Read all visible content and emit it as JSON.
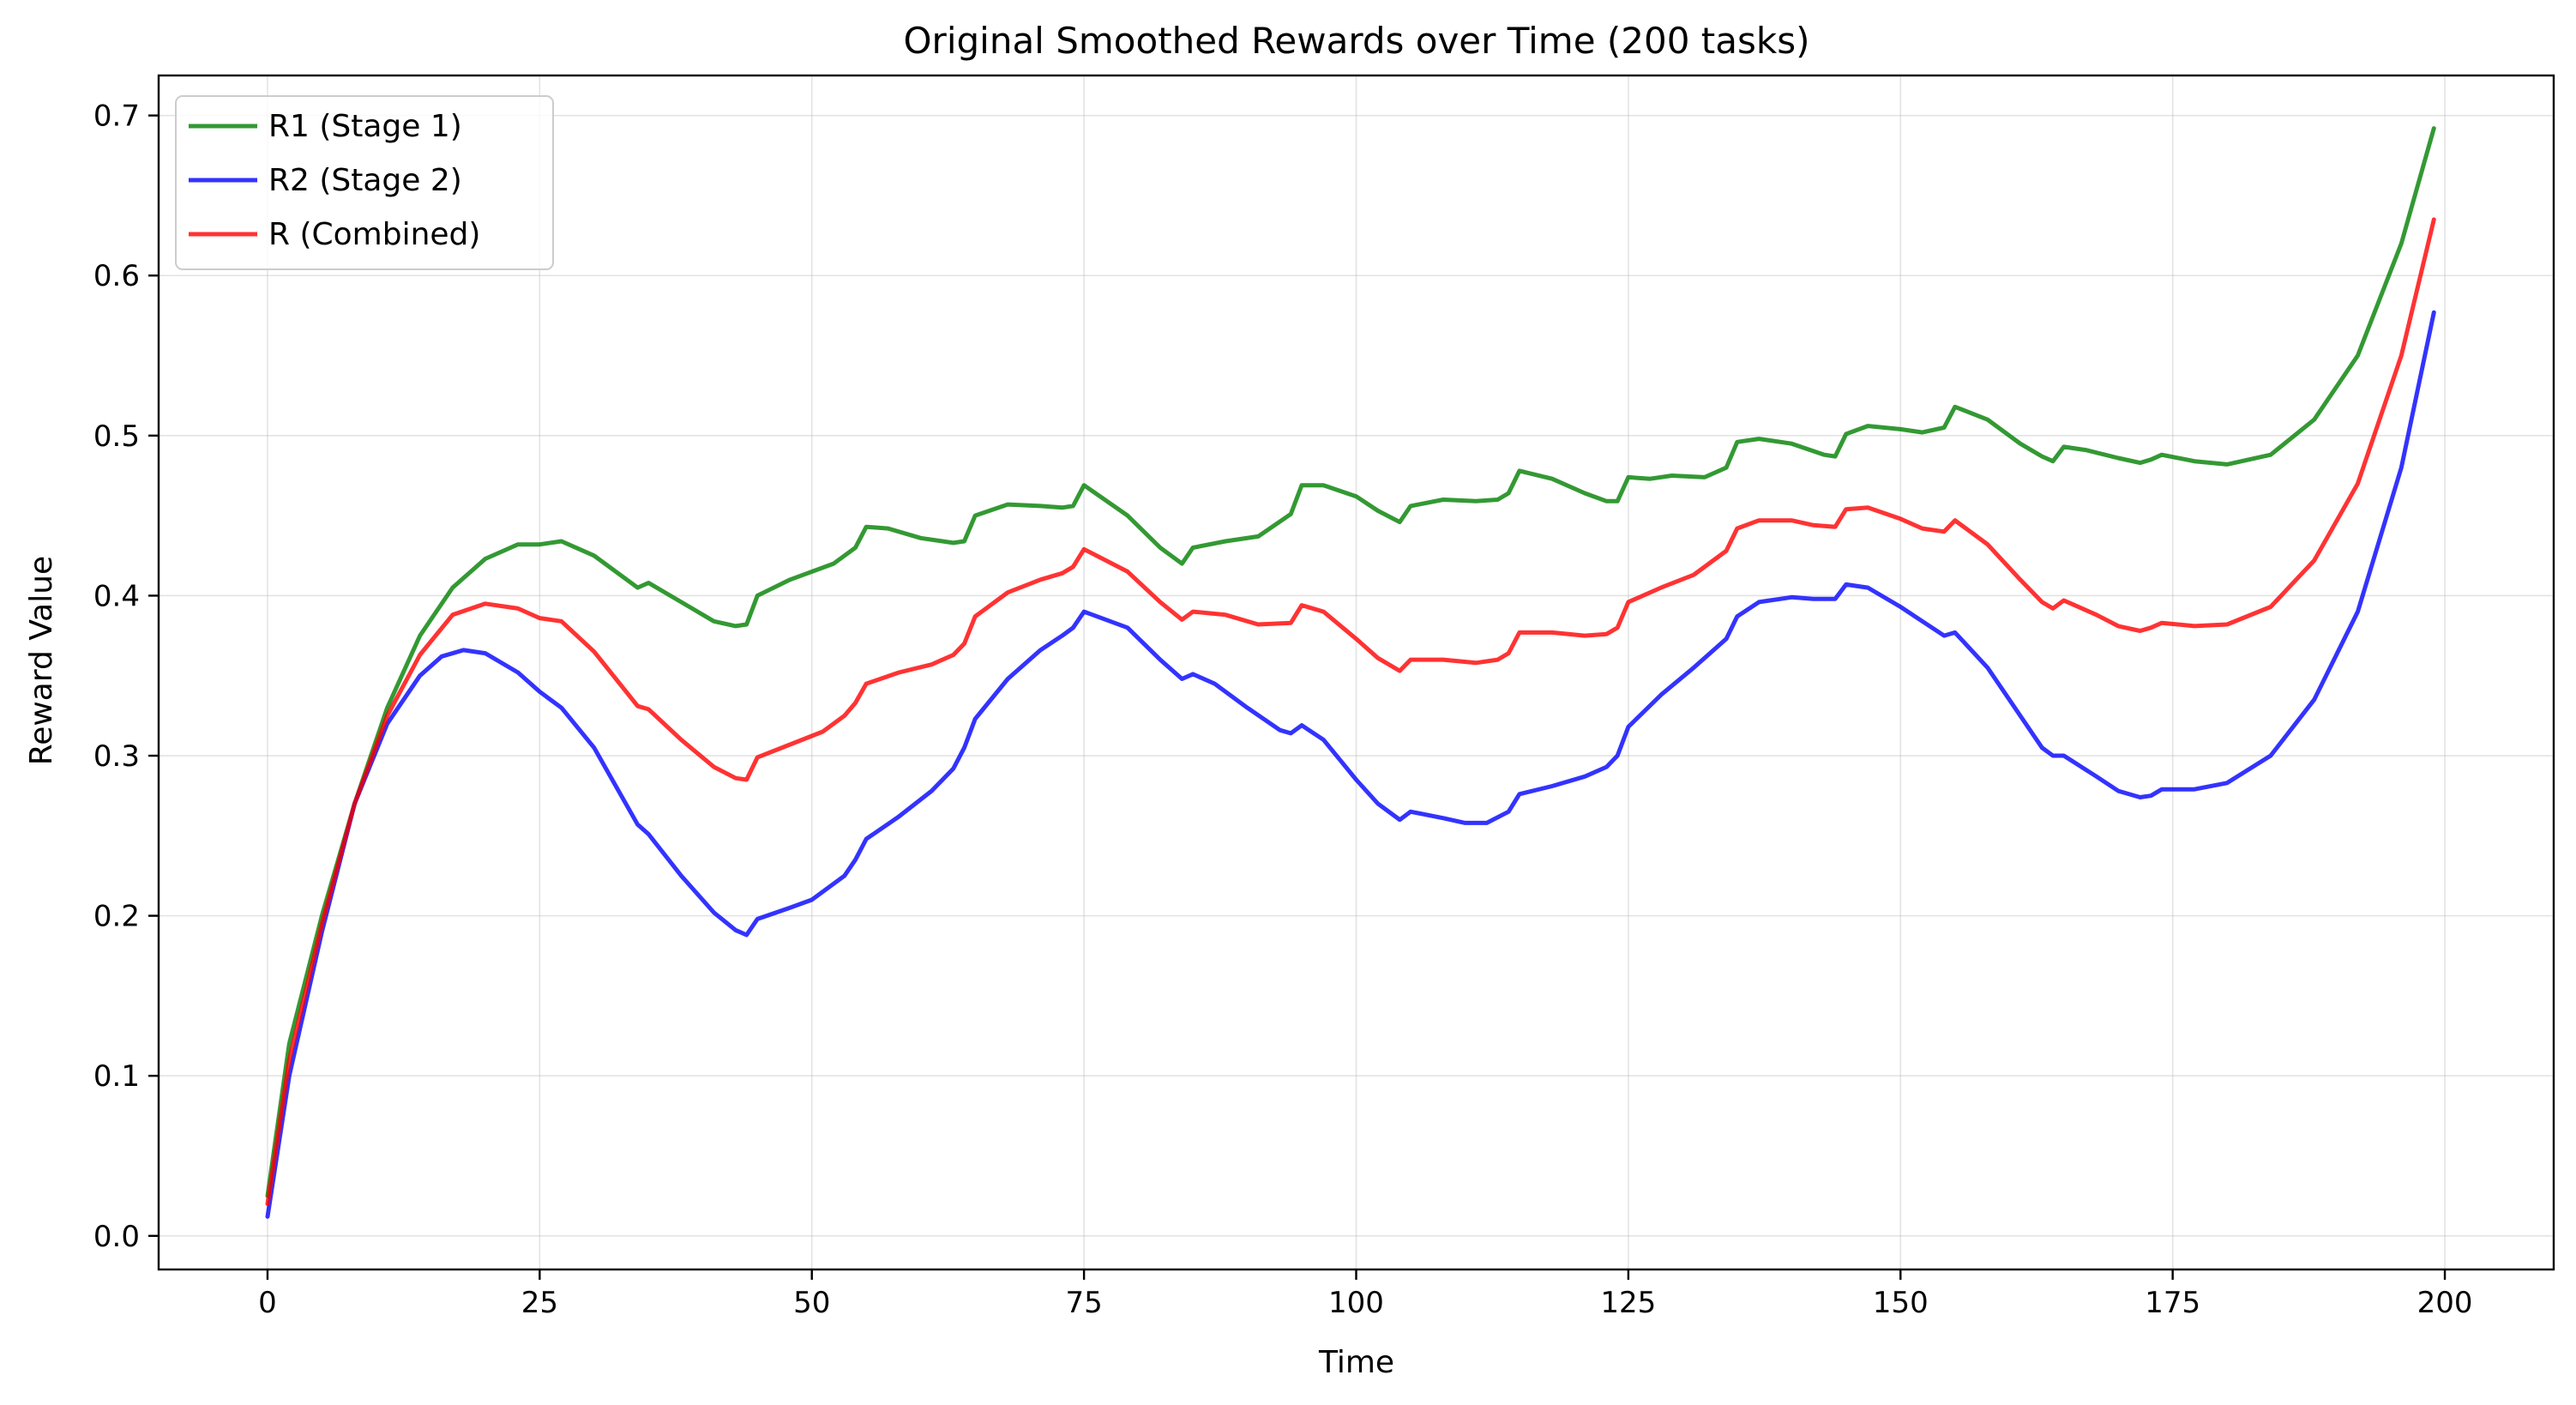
{
  "chart_data": {
    "type": "line",
    "title": "Original Smoothed Rewards over Time (200 tasks)",
    "xlabel": "Time",
    "ylabel": "Reward Value",
    "xlim": [
      -10,
      210
    ],
    "ylim": [
      -0.021,
      0.725
    ],
    "xticks": [
      0,
      25,
      50,
      75,
      100,
      125,
      150,
      175,
      200
    ],
    "yticks": [
      0.0,
      0.1,
      0.2,
      0.3,
      0.4,
      0.5,
      0.6,
      0.7
    ],
    "xtick_labels": [
      "0",
      "25",
      "50",
      "75",
      "100",
      "125",
      "150",
      "175",
      "200"
    ],
    "ytick_labels": [
      "0.0",
      "0.1",
      "0.2",
      "0.3",
      "0.4",
      "0.5",
      "0.6",
      "0.7"
    ],
    "grid": true,
    "legend_position": "top-left",
    "series": [
      {
        "name": "R1 (Stage 1)",
        "color": "#008000",
        "points": [
          [
            0,
            0.025
          ],
          [
            2,
            0.12
          ],
          [
            5,
            0.2
          ],
          [
            8,
            0.27
          ],
          [
            11,
            0.33
          ],
          [
            14,
            0.375
          ],
          [
            17,
            0.405
          ],
          [
            20,
            0.423
          ],
          [
            23,
            0.432
          ],
          [
            25,
            0.432
          ],
          [
            27,
            0.434
          ],
          [
            30,
            0.425
          ],
          [
            34,
            0.405
          ],
          [
            35,
            0.408
          ],
          [
            38,
            0.396
          ],
          [
            41,
            0.384
          ],
          [
            43,
            0.381
          ],
          [
            44,
            0.382
          ],
          [
            45,
            0.4
          ],
          [
            48,
            0.41
          ],
          [
            52,
            0.42
          ],
          [
            54,
            0.43
          ],
          [
            55,
            0.443
          ],
          [
            57,
            0.442
          ],
          [
            60,
            0.436
          ],
          [
            63,
            0.433
          ],
          [
            64,
            0.434
          ],
          [
            65,
            0.45
          ],
          [
            68,
            0.457
          ],
          [
            71,
            0.456
          ],
          [
            73,
            0.455
          ],
          [
            74,
            0.456
          ],
          [
            75,
            0.469
          ],
          [
            79,
            0.45
          ],
          [
            82,
            0.43
          ],
          [
            84,
            0.42
          ],
          [
            85,
            0.43
          ],
          [
            88,
            0.434
          ],
          [
            91,
            0.437
          ],
          [
            94,
            0.451
          ],
          [
            95,
            0.469
          ],
          [
            97,
            0.469
          ],
          [
            100,
            0.462
          ],
          [
            102,
            0.453
          ],
          [
            104,
            0.446
          ],
          [
            105,
            0.456
          ],
          [
            108,
            0.46
          ],
          [
            111,
            0.459
          ],
          [
            113,
            0.46
          ],
          [
            114,
            0.464
          ],
          [
            115,
            0.478
          ],
          [
            118,
            0.473
          ],
          [
            121,
            0.464
          ],
          [
            123,
            0.459
          ],
          [
            124,
            0.459
          ],
          [
            125,
            0.474
          ],
          [
            127,
            0.473
          ],
          [
            129,
            0.475
          ],
          [
            132,
            0.474
          ],
          [
            134,
            0.48
          ],
          [
            135,
            0.496
          ],
          [
            137,
            0.498
          ],
          [
            140,
            0.495
          ],
          [
            143,
            0.488
          ],
          [
            144,
            0.487
          ],
          [
            145,
            0.501
          ],
          [
            147,
            0.506
          ],
          [
            150,
            0.504
          ],
          [
            152,
            0.502
          ],
          [
            154,
            0.505
          ],
          [
            155,
            0.518
          ],
          [
            158,
            0.51
          ],
          [
            161,
            0.495
          ],
          [
            163,
            0.487
          ],
          [
            164,
            0.484
          ],
          [
            165,
            0.493
          ],
          [
            167,
            0.491
          ],
          [
            170,
            0.486
          ],
          [
            172,
            0.483
          ],
          [
            173,
            0.485
          ],
          [
            174,
            0.488
          ],
          [
            177,
            0.484
          ],
          [
            180,
            0.482
          ],
          [
            184,
            0.488
          ],
          [
            188,
            0.51
          ],
          [
            192,
            0.55
          ],
          [
            196,
            0.62
          ],
          [
            199,
            0.692
          ]
        ]
      },
      {
        "name": "R2 (Stage 2)",
        "color": "#0000ff",
        "points": [
          [
            0,
            0.012
          ],
          [
            2,
            0.1
          ],
          [
            5,
            0.19
          ],
          [
            8,
            0.27
          ],
          [
            11,
            0.32
          ],
          [
            14,
            0.35
          ],
          [
            16,
            0.362
          ],
          [
            18,
            0.366
          ],
          [
            20,
            0.364
          ],
          [
            23,
            0.352
          ],
          [
            25,
            0.34
          ],
          [
            27,
            0.33
          ],
          [
            30,
            0.305
          ],
          [
            34,
            0.257
          ],
          [
            35,
            0.251
          ],
          [
            38,
            0.225
          ],
          [
            41,
            0.202
          ],
          [
            43,
            0.191
          ],
          [
            44,
            0.188
          ],
          [
            45,
            0.198
          ],
          [
            48,
            0.205
          ],
          [
            50,
            0.21
          ],
          [
            53,
            0.225
          ],
          [
            54,
            0.235
          ],
          [
            55,
            0.248
          ],
          [
            58,
            0.262
          ],
          [
            61,
            0.278
          ],
          [
            63,
            0.292
          ],
          [
            64,
            0.305
          ],
          [
            65,
            0.323
          ],
          [
            68,
            0.348
          ],
          [
            71,
            0.366
          ],
          [
            73,
            0.375
          ],
          [
            74,
            0.38
          ],
          [
            75,
            0.39
          ],
          [
            79,
            0.38
          ],
          [
            82,
            0.36
          ],
          [
            84,
            0.348
          ],
          [
            85,
            0.351
          ],
          [
            87,
            0.345
          ],
          [
            90,
            0.33
          ],
          [
            93,
            0.316
          ],
          [
            94,
            0.314
          ],
          [
            95,
            0.319
          ],
          [
            97,
            0.31
          ],
          [
            100,
            0.285
          ],
          [
            102,
            0.27
          ],
          [
            104,
            0.26
          ],
          [
            105,
            0.265
          ],
          [
            108,
            0.261
          ],
          [
            110,
            0.258
          ],
          [
            112,
            0.258
          ],
          [
            114,
            0.265
          ],
          [
            115,
            0.276
          ],
          [
            118,
            0.281
          ],
          [
            121,
            0.287
          ],
          [
            123,
            0.293
          ],
          [
            124,
            0.3
          ],
          [
            125,
            0.318
          ],
          [
            128,
            0.338
          ],
          [
            131,
            0.355
          ],
          [
            134,
            0.373
          ],
          [
            135,
            0.387
          ],
          [
            137,
            0.396
          ],
          [
            140,
            0.399
          ],
          [
            142,
            0.398
          ],
          [
            144,
            0.398
          ],
          [
            145,
            0.407
          ],
          [
            147,
            0.405
          ],
          [
            150,
            0.393
          ],
          [
            152,
            0.384
          ],
          [
            154,
            0.375
          ],
          [
            155,
            0.377
          ],
          [
            158,
            0.355
          ],
          [
            161,
            0.325
          ],
          [
            163,
            0.305
          ],
          [
            164,
            0.3
          ],
          [
            165,
            0.3
          ],
          [
            168,
            0.287
          ],
          [
            170,
            0.278
          ],
          [
            172,
            0.274
          ],
          [
            173,
            0.275
          ],
          [
            174,
            0.279
          ],
          [
            177,
            0.279
          ],
          [
            180,
            0.283
          ],
          [
            184,
            0.3
          ],
          [
            188,
            0.335
          ],
          [
            192,
            0.39
          ],
          [
            196,
            0.48
          ],
          [
            199,
            0.577
          ]
        ]
      },
      {
        "name": "R (Combined)",
        "color": "#ff0000",
        "points": [
          [
            0,
            0.02
          ],
          [
            2,
            0.11
          ],
          [
            5,
            0.195
          ],
          [
            8,
            0.27
          ],
          [
            11,
            0.325
          ],
          [
            14,
            0.363
          ],
          [
            17,
            0.388
          ],
          [
            20,
            0.395
          ],
          [
            23,
            0.392
          ],
          [
            25,
            0.386
          ],
          [
            27,
            0.384
          ],
          [
            30,
            0.365
          ],
          [
            34,
            0.331
          ],
          [
            35,
            0.329
          ],
          [
            38,
            0.31
          ],
          [
            41,
            0.293
          ],
          [
            43,
            0.286
          ],
          [
            44,
            0.285
          ],
          [
            45,
            0.299
          ],
          [
            48,
            0.307
          ],
          [
            51,
            0.315
          ],
          [
            53,
            0.325
          ],
          [
            54,
            0.333
          ],
          [
            55,
            0.345
          ],
          [
            58,
            0.352
          ],
          [
            61,
            0.357
          ],
          [
            63,
            0.363
          ],
          [
            64,
            0.37
          ],
          [
            65,
            0.387
          ],
          [
            68,
            0.402
          ],
          [
            71,
            0.41
          ],
          [
            73,
            0.414
          ],
          [
            74,
            0.418
          ],
          [
            75,
            0.429
          ],
          [
            79,
            0.415
          ],
          [
            82,
            0.396
          ],
          [
            84,
            0.385
          ],
          [
            85,
            0.39
          ],
          [
            88,
            0.388
          ],
          [
            91,
            0.382
          ],
          [
            94,
            0.383
          ],
          [
            95,
            0.394
          ],
          [
            97,
            0.39
          ],
          [
            100,
            0.373
          ],
          [
            102,
            0.361
          ],
          [
            104,
            0.353
          ],
          [
            105,
            0.36
          ],
          [
            108,
            0.36
          ],
          [
            111,
            0.358
          ],
          [
            113,
            0.36
          ],
          [
            114,
            0.364
          ],
          [
            115,
            0.377
          ],
          [
            118,
            0.377
          ],
          [
            121,
            0.375
          ],
          [
            123,
            0.376
          ],
          [
            124,
            0.38
          ],
          [
            125,
            0.396
          ],
          [
            128,
            0.405
          ],
          [
            131,
            0.413
          ],
          [
            134,
            0.428
          ],
          [
            135,
            0.442
          ],
          [
            137,
            0.447
          ],
          [
            140,
            0.447
          ],
          [
            142,
            0.444
          ],
          [
            144,
            0.443
          ],
          [
            145,
            0.454
          ],
          [
            147,
            0.455
          ],
          [
            150,
            0.448
          ],
          [
            152,
            0.442
          ],
          [
            154,
            0.44
          ],
          [
            155,
            0.447
          ],
          [
            158,
            0.432
          ],
          [
            161,
            0.41
          ],
          [
            163,
            0.396
          ],
          [
            164,
            0.392
          ],
          [
            165,
            0.397
          ],
          [
            168,
            0.388
          ],
          [
            170,
            0.381
          ],
          [
            172,
            0.378
          ],
          [
            173,
            0.38
          ],
          [
            174,
            0.383
          ],
          [
            177,
            0.381
          ],
          [
            180,
            0.382
          ],
          [
            184,
            0.393
          ],
          [
            188,
            0.422
          ],
          [
            192,
            0.47
          ],
          [
            196,
            0.55
          ],
          [
            199,
            0.635
          ]
        ]
      }
    ]
  }
}
